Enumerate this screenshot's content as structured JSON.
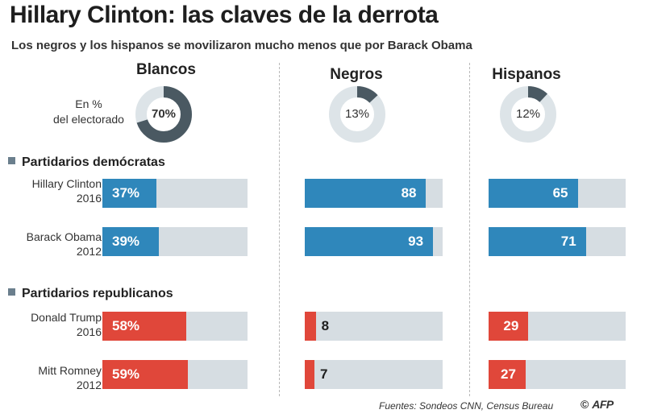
{
  "title": "Hillary Clinton: las claves de la derrota",
  "subtitle": "Los negros y los hispanos se movilizaron mucho menos que por Barack Obama",
  "donut_caption": [
    "En %",
    "del electorado"
  ],
  "sections": {
    "democrats": "Partidarios demócratas",
    "republicans": "Partidarios republicanos"
  },
  "row_labels": {
    "clinton": [
      "Hillary Clinton",
      "2016"
    ],
    "obama": [
      "Barack Obama",
      "2012"
    ],
    "trump": [
      "Donald Trump",
      "2016"
    ],
    "romney": [
      "Mitt Romney",
      "2012"
    ]
  },
  "source": "Fuentes: Sondeos CNN, Census Bureau",
  "credit": {
    "copyright": "©",
    "logo": "AFP"
  },
  "colors": {
    "democrat": "#2f87bb",
    "republican": "#e0473a",
    "track": "#d6dde2",
    "donut_dark": "#4a5962",
    "donut_light": "#dde4e8"
  },
  "chart_data": [
    {
      "type": "pie",
      "categories": [
        "Blancos",
        "Negros",
        "Hispanos"
      ],
      "values": [
        70,
        13,
        12
      ],
      "labels": [
        "70%",
        "13%",
        "12%"
      ],
      "unit": "%"
    },
    {
      "type": "bar",
      "orientation": "horizontal",
      "categories": [
        "Blancos",
        "Negros",
        "Hispanos"
      ],
      "series": [
        {
          "name": "Hillary Clinton 2016",
          "values": [
            37,
            88,
            65
          ],
          "labels": [
            "37%",
            "88",
            "65"
          ]
        },
        {
          "name": "Barack Obama 2012",
          "values": [
            39,
            93,
            71
          ],
          "labels": [
            "39%",
            "93",
            "71"
          ]
        },
        {
          "name": "Donald Trump 2016",
          "values": [
            58,
            8,
            29
          ],
          "labels": [
            "58%",
            "8",
            "29"
          ]
        },
        {
          "name": "Mitt Romney 2012",
          "values": [
            59,
            7,
            27
          ],
          "labels": [
            "59%",
            "7",
            "27"
          ]
        }
      ],
      "xlim": [
        0,
        100
      ]
    }
  ]
}
